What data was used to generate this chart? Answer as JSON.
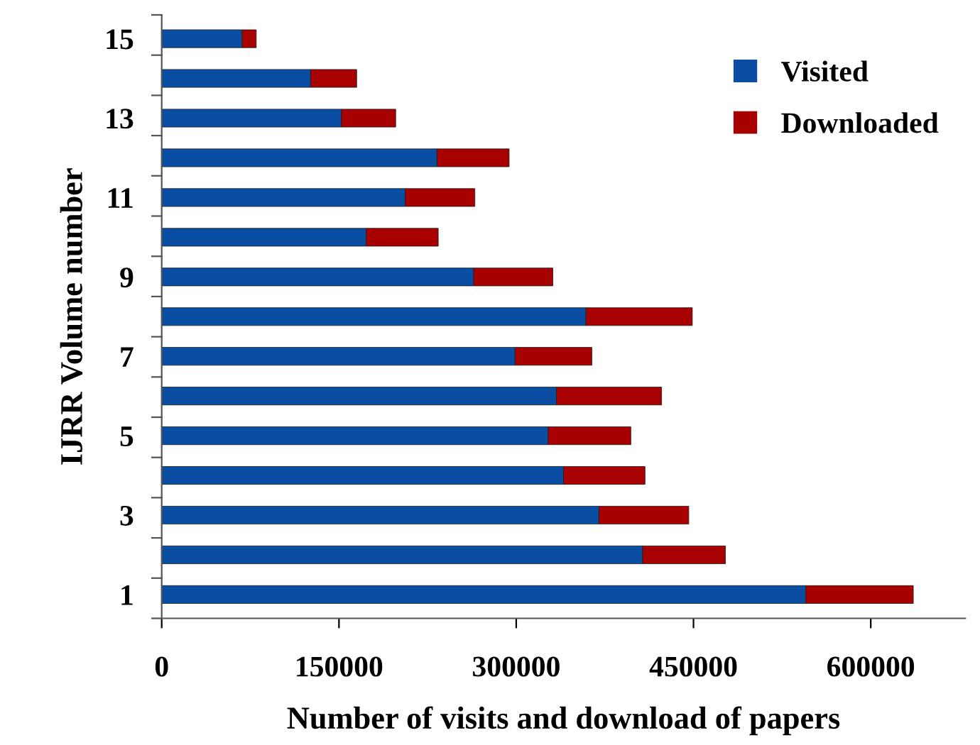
{
  "chart_data": {
    "type": "bar",
    "orientation": "horizontal",
    "stacked": true,
    "xlabel": "Number of visits and download of papers",
    "ylabel": "IJRR Volume number",
    "categories": [
      "15",
      null,
      "13",
      null,
      "11",
      null,
      "9",
      null,
      "7",
      null,
      "5",
      null,
      "3",
      null,
      "1"
    ],
    "series": [
      {
        "name": "Visited",
        "color": "#0a4ea3",
        "values": [
          68000,
          126000,
          152000,
          233000,
          206000,
          173000,
          264000,
          359000,
          299000,
          334000,
          327000,
          340000,
          370000,
          407000,
          545000
        ]
      },
      {
        "name": "Downloaded",
        "color": "#a80000",
        "values": [
          12000,
          39000,
          46000,
          61000,
          59000,
          61000,
          67000,
          90000,
          65000,
          89000,
          70000,
          69000,
          76000,
          70000,
          91000
        ]
      }
    ],
    "xlim": [
      0,
      680000
    ],
    "xticks": [
      0,
      150000,
      300000,
      450000,
      600000
    ],
    "grid": false,
    "legend": "top right"
  }
}
